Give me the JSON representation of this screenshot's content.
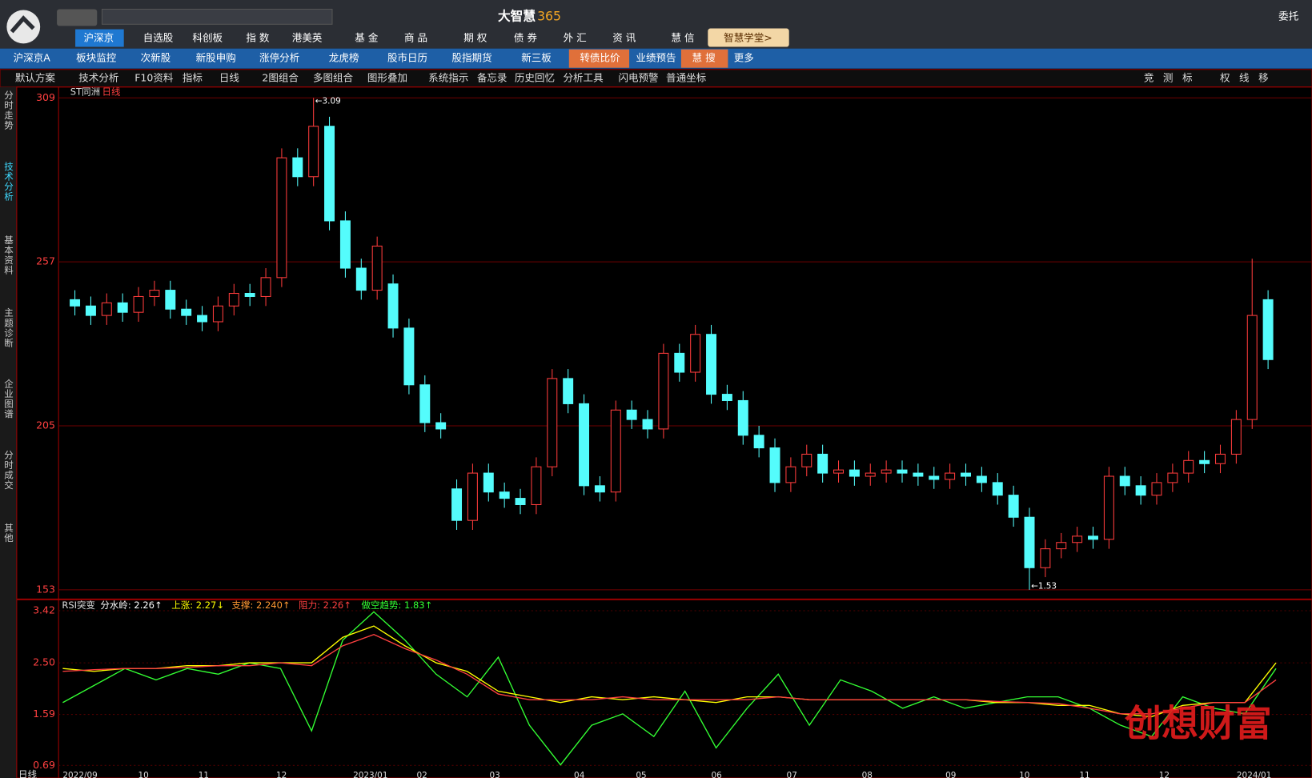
{
  "header": {
    "app_title": "大智慧",
    "app_suffix": "365",
    "entrust": "委托"
  },
  "nav1": [
    "沪深京",
    "自选股",
    "科创板",
    "指 数",
    "港美英",
    "基 金",
    "商 品",
    "期 权",
    "债 券",
    "外 汇",
    "资 讯",
    "慧 信",
    "智慧学堂>"
  ],
  "nav2": [
    "沪深京A",
    "板块监控",
    "次新股",
    "新股申购",
    "涨停分析",
    "龙虎榜",
    "股市日历",
    "股指期货",
    "新三板",
    "转债比价",
    "业绩预告",
    "慧 搜",
    "更多"
  ],
  "toolbar": [
    "默认方案",
    "技术分析",
    "F10资料",
    "指标",
    "日线",
    "2图组合",
    "多图组合",
    "图形叠加",
    "系统指示",
    "备忘录",
    "历史回忆",
    "分析工具",
    "闪电预警",
    "普通坐标"
  ],
  "toolbar_right": [
    "竞",
    "测",
    "标",
    "权",
    "线",
    "移"
  ],
  "sidebar": [
    "分时走势",
    "技术分析",
    "基本资料",
    "主题诊断",
    "企业图谱",
    "分时成交",
    "其他"
  ],
  "watermark": "创想财富",
  "chart_data": [
    {
      "type": "candlestick",
      "title": "ST同洲",
      "period": "日线",
      "ylim": [
        153,
        309
      ],
      "yticks": [
        309,
        257,
        205,
        153
      ],
      "grid": true,
      "up_color": "#ff3c3c",
      "down_color": "#54fcfc",
      "annotations": [
        "←3.09",
        "←1.53"
      ],
      "open": [
        245,
        243,
        240,
        244,
        241,
        246,
        248,
        242,
        240,
        238,
        243,
        247,
        246,
        252,
        290,
        284,
        300,
        270,
        255,
        248,
        250,
        236,
        218,
        206,
        185,
        175,
        190,
        184,
        182,
        180,
        192,
        220,
        212,
        186,
        184,
        210,
        207,
        204,
        228,
        222,
        234,
        215,
        213,
        202,
        198,
        187,
        192,
        196,
        190,
        191,
        189,
        190,
        191,
        190,
        189,
        188,
        190,
        189,
        187,
        183,
        176,
        160,
        166,
        168,
        170,
        169,
        189,
        186,
        183,
        187,
        190,
        194,
        193,
        196,
        207,
        245
      ],
      "close": [
        243,
        240,
        244,
        241,
        246,
        248,
        242,
        240,
        238,
        243,
        247,
        246,
        252,
        290,
        284,
        300,
        270,
        255,
        248,
        262,
        236,
        218,
        206,
        204,
        175,
        190,
        184,
        182,
        180,
        192,
        220,
        212,
        186,
        184,
        210,
        207,
        204,
        228,
        222,
        234,
        215,
        213,
        202,
        198,
        187,
        192,
        196,
        190,
        191,
        189,
        190,
        191,
        190,
        189,
        188,
        190,
        189,
        187,
        183,
        176,
        160,
        166,
        168,
        170,
        169,
        189,
        186,
        183,
        187,
        190,
        194,
        193,
        196,
        207,
        240,
        226
      ],
      "high": [
        248,
        246,
        247,
        247,
        249,
        251,
        251,
        245,
        243,
        246,
        250,
        250,
        255,
        293,
        293,
        309,
        303,
        273,
        258,
        265,
        253,
        239,
        221,
        209,
        188,
        193,
        193,
        187,
        185,
        195,
        223,
        223,
        215,
        189,
        213,
        213,
        210,
        231,
        231,
        237,
        237,
        218,
        216,
        205,
        201,
        195,
        199,
        199,
        194,
        194,
        193,
        194,
        194,
        193,
        192,
        193,
        193,
        192,
        190,
        186,
        179,
        169,
        171,
        173,
        173,
        192,
        192,
        189,
        190,
        193,
        197,
        197,
        199,
        210,
        258,
        248
      ],
      "low": [
        240,
        237,
        237,
        238,
        238,
        243,
        239,
        237,
        235,
        235,
        240,
        243,
        243,
        249,
        281,
        281,
        267,
        252,
        245,
        245,
        233,
        215,
        203,
        201,
        172,
        172,
        181,
        179,
        177,
        177,
        189,
        209,
        183,
        181,
        181,
        204,
        201,
        201,
        219,
        219,
        212,
        210,
        199,
        195,
        184,
        184,
        189,
        187,
        187,
        186,
        186,
        187,
        187,
        186,
        185,
        185,
        186,
        184,
        180,
        173,
        153,
        157,
        163,
        165,
        166,
        166,
        183,
        180,
        180,
        184,
        187,
        190,
        190,
        193,
        204,
        223
      ]
    },
    {
      "type": "line",
      "title": "RSI突变",
      "ylim": [
        0.69,
        3.42
      ],
      "yticks": [
        3.42,
        {
          "value": 2.5,
          "label": "2.50"
        },
        1.59,
        0.69
      ],
      "legend_items": [
        {
          "text": "分水岭: 2.26↑",
          "color": "#ffffff"
        },
        {
          "text": "上涨: 2.27↓",
          "color": "#ffff00"
        },
        {
          "text": "支撑: 2.240↑",
          "color": "#ff9933"
        },
        {
          "text": "阻力: 2.26↑",
          "color": "#ff4040"
        },
        {
          "text": "做空趋势: 1.83↑",
          "color": "#33ff33"
        }
      ],
      "x_tick_labels": [
        "2022/09",
        "10",
        "11",
        "12",
        "2023/01",
        "02",
        "03",
        "04",
        "05",
        "06",
        "07",
        "08",
        "09",
        "10",
        "11",
        "12",
        "2024/01"
      ],
      "period": "日线",
      "series": [
        {
          "color": "#33ff33",
          "values": [
            1.8,
            2.1,
            2.4,
            2.2,
            2.4,
            2.3,
            2.5,
            2.4,
            1.3,
            2.9,
            3.4,
            2.9,
            2.3,
            1.9,
            2.6,
            1.4,
            0.7,
            1.4,
            1.6,
            1.2,
            2.0,
            1.0,
            1.7,
            2.3,
            1.4,
            2.2,
            2.0,
            1.7,
            1.9,
            1.7,
            1.8,
            1.9,
            1.9,
            1.7,
            1.4,
            1.2,
            1.9,
            1.7,
            1.6,
            2.4
          ]
        },
        {
          "color": "#ffff00",
          "values": [
            2.4,
            2.35,
            2.4,
            2.4,
            2.45,
            2.45,
            2.5,
            2.5,
            2.5,
            2.95,
            3.15,
            2.8,
            2.5,
            2.35,
            2.0,
            1.9,
            1.8,
            1.9,
            1.85,
            1.9,
            1.85,
            1.8,
            1.9,
            1.9,
            1.85,
            1.85,
            1.85,
            1.85,
            1.85,
            1.85,
            1.8,
            1.8,
            1.75,
            1.75,
            1.6,
            1.55,
            1.75,
            1.8,
            1.8,
            2.5
          ]
        },
        {
          "color": "#ff4040",
          "values": [
            2.35,
            2.38,
            2.4,
            2.4,
            2.42,
            2.45,
            2.45,
            2.5,
            2.45,
            2.8,
            3.0,
            2.75,
            2.55,
            2.3,
            1.95,
            1.85,
            1.85,
            1.85,
            1.9,
            1.85,
            1.85,
            1.85,
            1.85,
            1.9,
            1.85,
            1.85,
            1.85,
            1.85,
            1.85,
            1.85,
            1.82,
            1.8,
            1.78,
            1.7,
            1.6,
            1.6,
            1.7,
            1.8,
            1.8,
            2.2
          ]
        }
      ]
    }
  ]
}
